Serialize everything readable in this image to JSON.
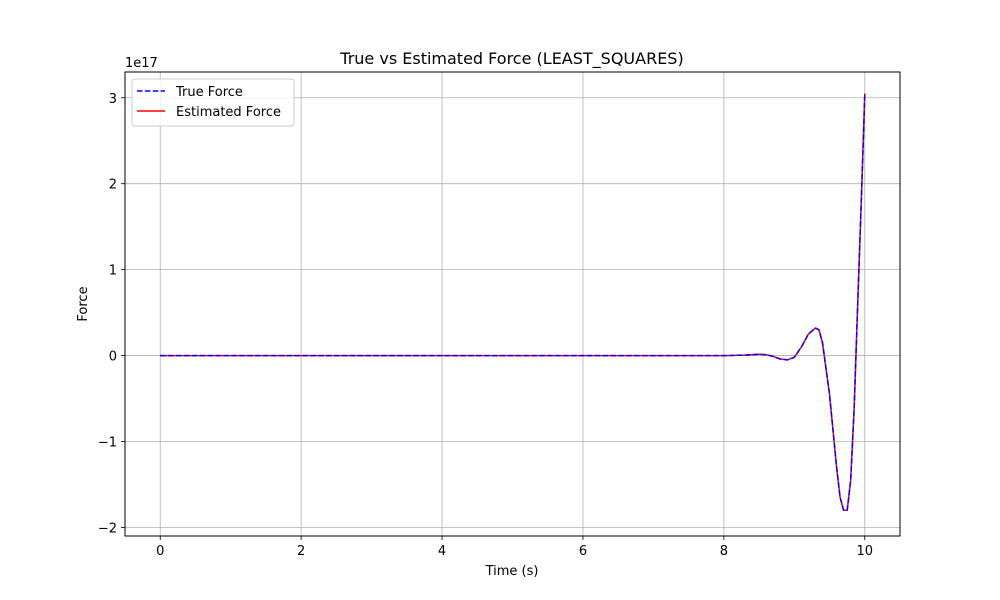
{
  "chart_data": {
    "type": "line",
    "title": "True vs Estimated Force (LEAST_SQUARES)",
    "xlabel": "Time (s)",
    "ylabel": "Force",
    "y_offset_label": "1e17",
    "xlim": [
      -0.5,
      10.5
    ],
    "ylim": [
      -2.1,
      3.3
    ],
    "y_scale_factor": 1e+17,
    "x_ticks": [
      0,
      2,
      4,
      6,
      8,
      10
    ],
    "x_tick_labels": [
      "0",
      "2",
      "4",
      "6",
      "8",
      "10"
    ],
    "y_ticks": [
      -2,
      -1,
      0,
      1,
      2,
      3
    ],
    "y_tick_labels": [
      "−2",
      "−1",
      "0",
      "1",
      "2",
      "3"
    ],
    "grid": true,
    "legend_position": "upper-left",
    "x": [
      0,
      1,
      2,
      3,
      4,
      5,
      6,
      7,
      7.5,
      8.0,
      8.3,
      8.5,
      8.6,
      8.7,
      8.8,
      8.9,
      9.0,
      9.1,
      9.2,
      9.3,
      9.35,
      9.4,
      9.5,
      9.6,
      9.65,
      9.7,
      9.75,
      9.8,
      9.85,
      9.9,
      9.95,
      10.0
    ],
    "series": [
      {
        "name": "True Force",
        "color": "#0000ff",
        "style": "dashed",
        "values": [
          0,
          0,
          0,
          0,
          0,
          0,
          0,
          0,
          0,
          0,
          0.005,
          0.015,
          0.01,
          -0.01,
          -0.04,
          -0.05,
          -0.02,
          0.1,
          0.25,
          0.32,
          0.3,
          0.15,
          -0.45,
          -1.3,
          -1.65,
          -1.8,
          -1.8,
          -1.45,
          -0.6,
          0.6,
          1.8,
          3.05
        ]
      },
      {
        "name": "Estimated Force",
        "color": "#ff0000",
        "style": "solid",
        "values": [
          0,
          0,
          0,
          0,
          0,
          0,
          0,
          0,
          0,
          0,
          0.005,
          0.015,
          0.01,
          -0.01,
          -0.04,
          -0.05,
          -0.02,
          0.1,
          0.25,
          0.32,
          0.3,
          0.15,
          -0.45,
          -1.3,
          -1.65,
          -1.8,
          -1.8,
          -1.45,
          -0.6,
          0.6,
          1.8,
          3.05
        ]
      }
    ]
  }
}
